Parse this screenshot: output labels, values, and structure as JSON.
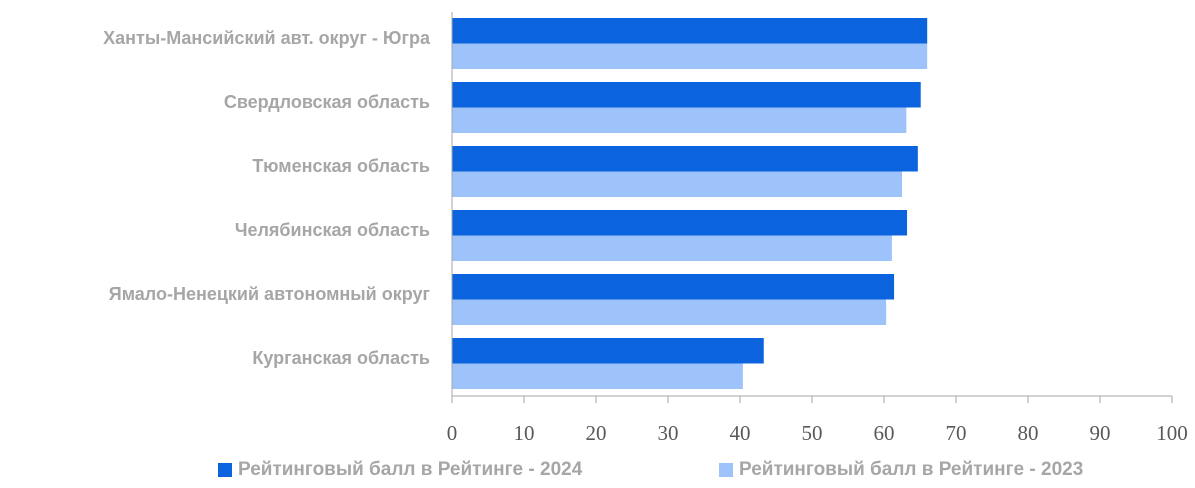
{
  "chart_data": {
    "type": "barh",
    "categories": [
      "Ханты-Мансийский авт. округ - Югра",
      "Свердловская область",
      "Тюменская область",
      "Челябинская область",
      "Ямало-Ненецкий автономный округ",
      "Курганская область"
    ],
    "series": [
      {
        "name": "Рейтинговый балл в Рейтинге - 2024",
        "color": "#0b63de",
        "values": [
          66.0,
          65.1,
          64.7,
          63.2,
          61.4,
          43.3
        ]
      },
      {
        "name": "Рейтинговый балл в Рейтинге - 2023",
        "color": "#9ec3fb",
        "values": [
          66.0,
          63.1,
          62.5,
          61.1,
          60.3,
          40.4
        ]
      }
    ],
    "xlim": [
      0,
      100
    ],
    "xticks": [
      0,
      10,
      20,
      30,
      40,
      50,
      60,
      70,
      80,
      90,
      100
    ]
  }
}
